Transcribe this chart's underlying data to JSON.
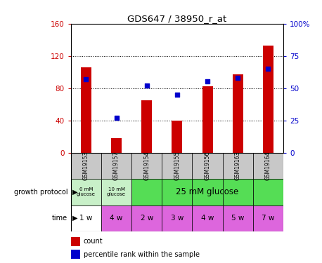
{
  "title": "GDS647 / 38950_r_at",
  "samples": [
    "GSM19153",
    "GSM19157",
    "GSM19154",
    "GSM19155",
    "GSM19156",
    "GSM19163",
    "GSM19164"
  ],
  "bar_values": [
    106,
    18,
    65,
    40,
    82,
    97,
    133
  ],
  "scatter_values": [
    57,
    27,
    52,
    45,
    55,
    58,
    65
  ],
  "ylim_left": [
    0,
    160
  ],
  "ylim_right": [
    0,
    100
  ],
  "yticks_left": [
    0,
    40,
    80,
    120,
    160
  ],
  "yticks_right": [
    0,
    25,
    50,
    75,
    100
  ],
  "ytick_labels_left": [
    "0",
    "40",
    "80",
    "120",
    "160"
  ],
  "ytick_labels_right": [
    "0",
    "25",
    "50",
    "75",
    "100%"
  ],
  "bar_color": "#cc0000",
  "scatter_color": "#0000cc",
  "time_row": [
    "1 w",
    "4 w",
    "2 w",
    "3 w",
    "4 w",
    "5 w",
    "7 w"
  ],
  "time_colors": [
    "#ffffff",
    "#dd66dd",
    "#dd66dd",
    "#dd66dd",
    "#dd66dd",
    "#dd66dd",
    "#dd66dd"
  ],
  "growth_protocol_colors_cols": [
    "#c8f0c8",
    "#c8f0c8",
    "#55dd55",
    "#55dd55",
    "#55dd55",
    "#55dd55",
    "#55dd55"
  ],
  "growth_protocol_texts_col01": [
    "0 mM\nglucose",
    "10 mM\nglucose"
  ],
  "growth_protocol_text_span": "25 mM glucose",
  "sample_bg_color": "#c8c8c8",
  "legend_count_color": "#cc0000",
  "legend_pct_color": "#0000cc",
  "dotted_grid_values": [
    40,
    80,
    120
  ],
  "left_axis_color": "#cc0000",
  "right_axis_color": "#0000cc",
  "right_axis_label": "100%"
}
